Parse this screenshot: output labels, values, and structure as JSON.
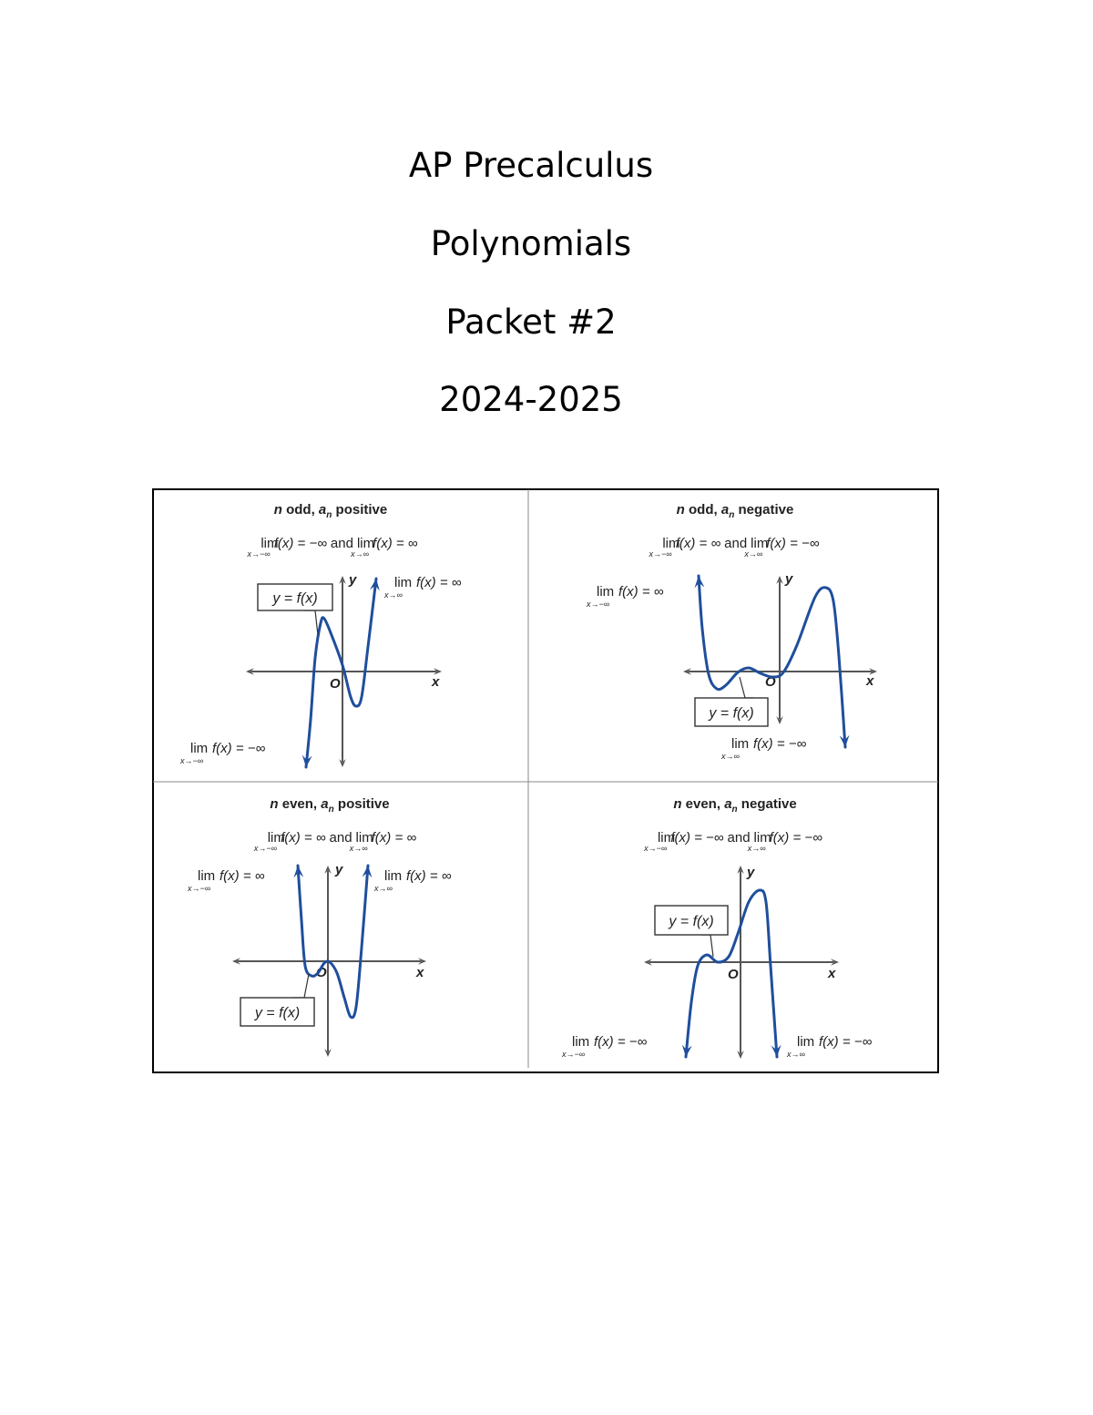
{
  "header": {
    "course": "AP Precalculus",
    "topic": "Polynomials",
    "packet": "Packet #2",
    "year": "2024-2025"
  },
  "colors": {
    "curve": "#1f4e9c",
    "axis": "#555555",
    "border": "#000000"
  },
  "quadrants": [
    {
      "title": {
        "n": "n",
        "mid": " odd, ",
        "a": "a",
        "sub": "n",
        "rest": " positive"
      },
      "limits": {
        "lim1": "lim",
        "sub1": "x→−∞",
        "expr1": "f(x) = −∞",
        "and": "and",
        "lim2": "lim",
        "sub2": "x→∞",
        "expr2": "f(x) = ∞"
      },
      "callouts": [
        {
          "lim": "lim",
          "sub": "x→∞",
          "expr": "f(x) = ∞"
        },
        {
          "lim": "lim",
          "sub": "x→−∞",
          "expr": "f(x) = −∞"
        }
      ],
      "label": "y = f(x)",
      "x_axis": "x",
      "y_axis": "y",
      "origin": "O"
    },
    {
      "title": {
        "n": "n",
        "mid": " odd, ",
        "a": "a",
        "sub": "n",
        "rest": " negative"
      },
      "limits": {
        "lim1": "lim",
        "sub1": "x→−∞",
        "expr1": "f(x) = ∞",
        "and": "and",
        "lim2": "lim",
        "sub2": "x→∞",
        "expr2": "f(x) = −∞"
      },
      "callouts": [
        {
          "lim": "lim",
          "sub": "x→−∞",
          "expr": "f(x) = ∞"
        },
        {
          "lim": "lim",
          "sub": "x→∞",
          "expr": "f(x) = −∞"
        }
      ],
      "label": "y = f(x)",
      "x_axis": "x",
      "y_axis": "y",
      "origin": "O"
    },
    {
      "title": {
        "n": "n",
        "mid": " even, ",
        "a": "a",
        "sub": "n",
        "rest": " positive"
      },
      "limits": {
        "lim1": "lim",
        "sub1": "x→−∞",
        "expr1": "f(x) = ∞",
        "and": "and",
        "lim2": "lim",
        "sub2": "x→∞",
        "expr2": "f(x) = ∞"
      },
      "callouts": [
        {
          "lim": "lim",
          "sub": "x→−∞",
          "expr": "f(x) = ∞"
        },
        {
          "lim": "lim",
          "sub": "x→∞",
          "expr": "f(x) = ∞"
        }
      ],
      "label": "y = f(x)",
      "x_axis": "x",
      "y_axis": "y",
      "origin": "O"
    },
    {
      "title": {
        "n": "n",
        "mid": " even, ",
        "a": "a",
        "sub": "n",
        "rest": " negative"
      },
      "limits": {
        "lim1": "lim",
        "sub1": "x→−∞",
        "expr1": "f(x) = −∞",
        "and": "and",
        "lim2": "lim",
        "sub2": "x→∞",
        "expr2": "f(x) = −∞"
      },
      "callouts": [
        {
          "lim": "lim",
          "sub": "x→−∞",
          "expr": "f(x) = −∞"
        },
        {
          "lim": "lim",
          "sub": "x→∞",
          "expr": "f(x) = −∞"
        }
      ],
      "label": "y = f(x)",
      "x_axis": "x",
      "y_axis": "y",
      "origin": "O"
    }
  ]
}
